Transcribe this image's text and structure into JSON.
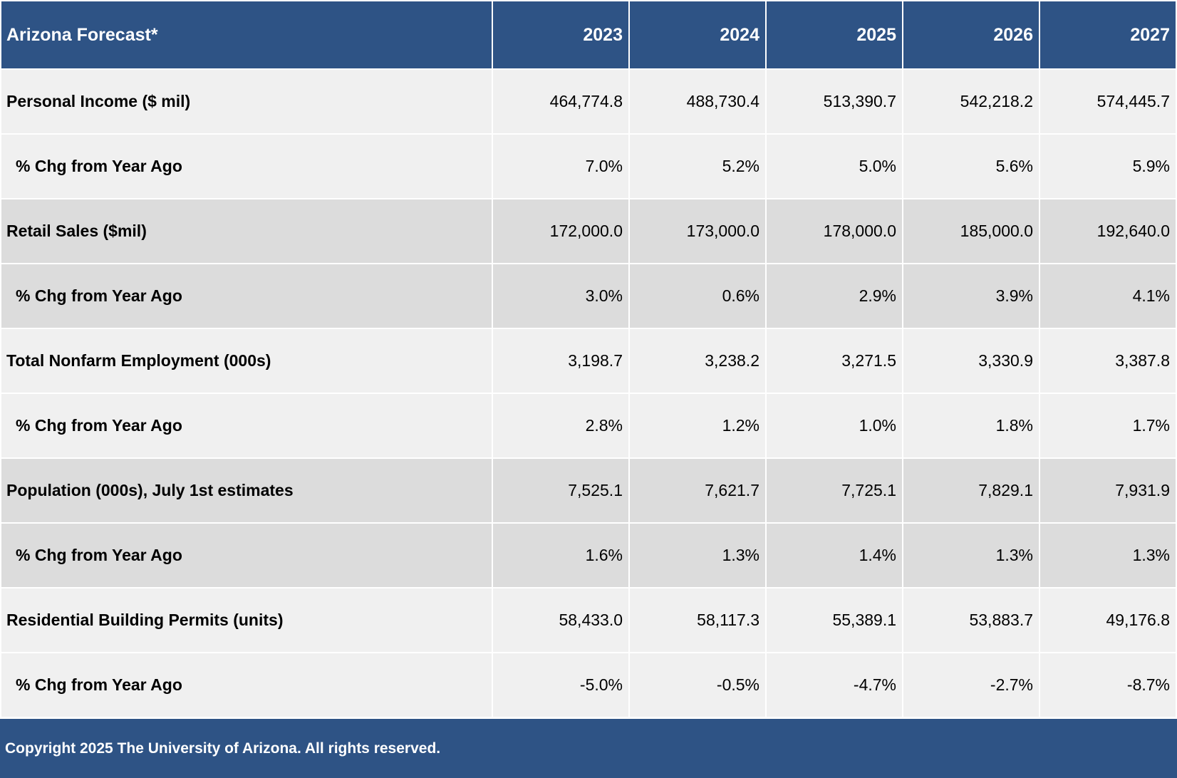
{
  "table": {
    "title": "Arizona Forecast*",
    "years": [
      "2023",
      "2024",
      "2025",
      "2026",
      "2027"
    ],
    "rows": [
      {
        "label": "Personal Income ($ mil)",
        "values": [
          "464,774.8",
          "488,730.4",
          "513,390.7",
          "542,218.2",
          "574,445.7"
        ]
      },
      {
        "label": "% Chg from Year Ago",
        "values": [
          "7.0%",
          "5.2%",
          "5.0%",
          "5.6%",
          "5.9%"
        ]
      },
      {
        "label": "Retail Sales ($mil)",
        "values": [
          "172,000.0",
          "173,000.0",
          "178,000.0",
          "185,000.0",
          "192,640.0"
        ]
      },
      {
        "label": "% Chg from Year Ago",
        "values": [
          "3.0%",
          "0.6%",
          "2.9%",
          "3.9%",
          "4.1%"
        ]
      },
      {
        "label": "Total Nonfarm Employment (000s)",
        "values": [
          "3,198.7",
          "3,238.2",
          "3,271.5",
          "3,330.9",
          "3,387.8"
        ]
      },
      {
        "label": "% Chg from Year Ago",
        "values": [
          "2.8%",
          "1.2%",
          "1.0%",
          "1.8%",
          "1.7%"
        ]
      },
      {
        "label": "Population (000s), July 1st estimates",
        "values": [
          "7,525.1",
          "7,621.7",
          "7,725.1",
          "7,829.1",
          "7,931.9"
        ]
      },
      {
        "label": "% Chg from Year Ago",
        "values": [
          "1.6%",
          "1.3%",
          "1.4%",
          "1.3%",
          "1.3%"
        ]
      },
      {
        "label": "Residential Building Permits (units)",
        "values": [
          "58,433.0",
          "58,117.3",
          "55,389.1",
          "53,883.7",
          "49,176.8"
        ]
      },
      {
        "label": "% Chg from Year Ago",
        "values": [
          "-5.0%",
          "-0.5%",
          "-4.7%",
          "-2.7%",
          "-8.7%"
        ]
      }
    ]
  },
  "footer": {
    "copyright": "Copyright 2025 The University of Arizona. All rights reserved."
  },
  "colors": {
    "header_bg": "#2e5385",
    "row_light": "#f0f0f0",
    "row_dark": "#dcdcdc"
  }
}
